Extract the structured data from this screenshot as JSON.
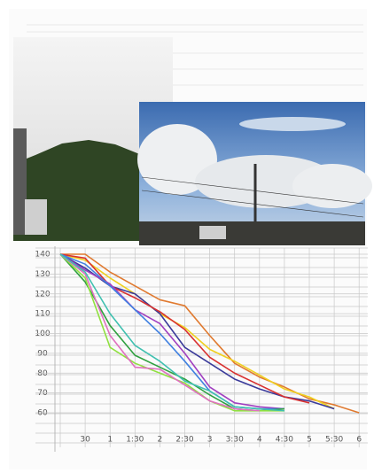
{
  "chart_data": {
    "type": "line",
    "categories": [
      null,
      "30",
      "1",
      "1:30",
      "2",
      "2:30",
      "3",
      "3:30",
      "4",
      "4:30",
      "5",
      "5:30",
      "6"
    ],
    "ylim": [
      60,
      140
    ],
    "yticks": [
      140,
      130,
      120,
      110,
      100,
      90,
      80,
      70,
      60
    ],
    "grid": true,
    "series": [
      {
        "color": "#e07a30",
        "values": [
          140,
          140,
          131,
          124,
          117,
          114,
          99,
          85,
          78,
          73,
          67,
          64,
          60
        ]
      },
      {
        "color": "#f0d020",
        "values": [
          140,
          137,
          128,
          120,
          110,
          103,
          92,
          86,
          79,
          72,
          68,
          62,
          null
        ]
      },
      {
        "color": "#3a3a9a",
        "values": [
          140,
          133,
          124,
          120,
          110,
          93,
          85,
          77,
          72,
          68,
          66,
          62,
          null
        ]
      },
      {
        "color": "#d83030",
        "values": [
          140,
          138,
          124,
          118,
          111,
          102,
          88,
          80,
          74,
          68,
          65,
          null,
          null
        ]
      },
      {
        "color": "#a040c0",
        "values": [
          140,
          132,
          125,
          112,
          105,
          90,
          73,
          65,
          63,
          62,
          null,
          null,
          null
        ]
      },
      {
        "color": "#4080e0",
        "values": [
          140,
          135,
          124,
          112,
          100,
          86,
          71,
          63,
          62,
          62,
          null,
          null,
          null
        ]
      },
      {
        "color": "#30a040",
        "values": [
          140,
          126,
          104,
          89,
          83,
          77,
          69,
          62,
          61,
          62,
          null,
          null,
          null
        ]
      },
      {
        "color": "#90e040",
        "values": [
          140,
          128,
          93,
          85,
          80,
          75,
          66,
          61,
          61,
          61,
          null,
          null,
          null
        ]
      },
      {
        "color": "#e070c0",
        "values": [
          140,
          130,
          99,
          83,
          82,
          74,
          66,
          62,
          61,
          null,
          null,
          null,
          null
        ]
      },
      {
        "color": "#40c0b0",
        "values": [
          140,
          131,
          110,
          94,
          86,
          76,
          71,
          63,
          62,
          61,
          null,
          null,
          null
        ]
      }
    ]
  }
}
